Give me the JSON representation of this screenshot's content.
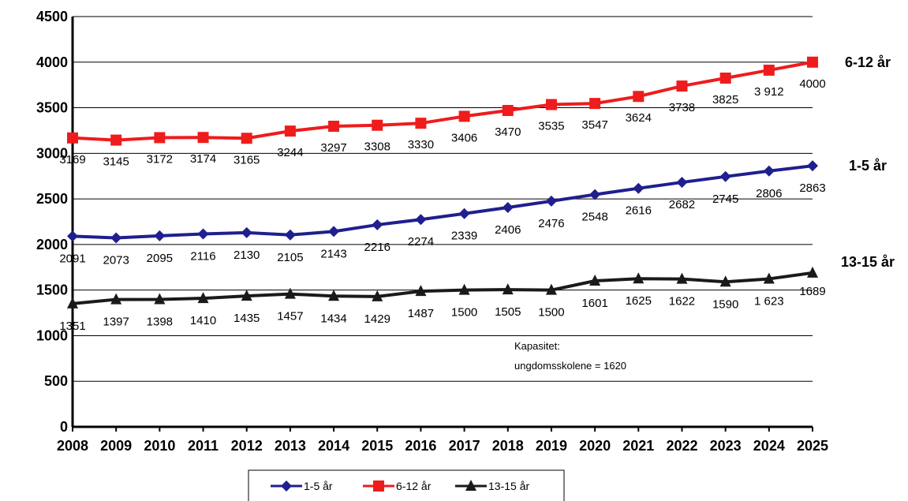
{
  "chart_data": {
    "type": "line",
    "x": [
      "2008",
      "2009",
      "2010",
      "2011",
      "2012",
      "2013",
      "2014",
      "2015",
      "2016",
      "2017",
      "2018",
      "2019",
      "2020",
      "2021",
      "2022",
      "2023",
      "2024",
      "2025"
    ],
    "ylim": [
      0,
      4500
    ],
    "yticks": [
      0,
      500,
      1000,
      1500,
      2000,
      2500,
      3000,
      3500,
      4000,
      4500
    ],
    "grid": true,
    "legend_position": "bottom",
    "series": [
      {
        "name": "1-5 år",
        "end_label": "1-5 år",
        "color": "#1f1f8f",
        "marker": "diamond",
        "values": [
          2091,
          2073,
          2095,
          2116,
          2130,
          2105,
          2143,
          2216,
          2274,
          2339,
          2406,
          2476,
          2548,
          2616,
          2682,
          2745,
          2806,
          2863
        ],
        "labels": [
          "2091",
          "2073",
          "2095",
          "2116",
          "2130",
          "2105",
          "2143",
          "2216",
          "2274",
          "2339",
          "2406",
          "2476",
          "2548",
          "2616",
          "2682",
          "2745",
          "2806",
          "2863"
        ]
      },
      {
        "name": "6-12 år",
        "end_label": "6-12 år",
        "color": "#ee1c1c",
        "marker": "square",
        "values": [
          3169,
          3145,
          3172,
          3174,
          3165,
          3244,
          3297,
          3308,
          3330,
          3406,
          3470,
          3535,
          3547,
          3624,
          3738,
          3825,
          3912,
          4000
        ],
        "labels": [
          "3169",
          "3145",
          "3172",
          "3174",
          "3165",
          "3244",
          "3297",
          "3308",
          "3330",
          "3406",
          "3470",
          "3535",
          "3547",
          "3624",
          "3738",
          "3825",
          "3 912",
          "4000"
        ]
      },
      {
        "name": "13-15 år",
        "end_label": "13-15 år",
        "color": "#1a1a1a",
        "marker": "triangle",
        "values": [
          1351,
          1397,
          1398,
          1410,
          1435,
          1457,
          1434,
          1429,
          1487,
          1500,
          1505,
          1500,
          1601,
          1625,
          1622,
          1590,
          1623,
          1689
        ],
        "labels": [
          "1351",
          "1397",
          "1398",
          "1410",
          "1435",
          "1457",
          "1434",
          "1429",
          "1487",
          "1500",
          "1505",
          "1500",
          "1601",
          "1625",
          "1622",
          "1590",
          "1 623",
          "1689"
        ]
      }
    ],
    "annotation": [
      "Kapasitet:",
      "ungdomsskolene = 1620"
    ]
  }
}
